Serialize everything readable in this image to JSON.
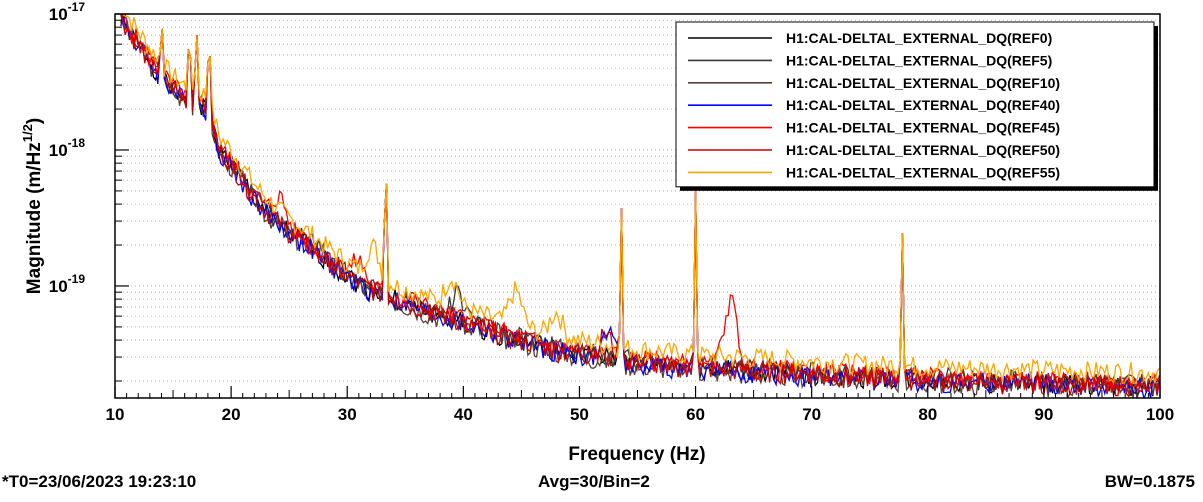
{
  "chart_data": {
    "type": "line",
    "xlabel": "Frequency (Hz)",
    "ylabel": "Magnitude (m/Hz^(1/2))",
    "xlim": [
      10,
      100
    ],
    "ylim": [
      1.5e-20,
      1e-17
    ],
    "yscale": "log",
    "grid": "horizontal dotted",
    "legend_position": "top-right",
    "x_ticks": [
      10,
      20,
      30,
      40,
      50,
      60,
      70,
      80,
      90,
      100
    ],
    "y_ticks": [
      {
        "value": 1e-17,
        "base": "10",
        "exp": "-17"
      },
      {
        "value": 1e-18,
        "base": "10",
        "exp": "-18"
      },
      {
        "value": 1e-19,
        "base": "10",
        "exp": "-19"
      }
    ],
    "baseline_x": [
      10.5,
      11,
      12,
      13,
      14,
      15,
      16,
      17,
      18,
      19,
      20,
      21,
      22,
      23,
      24,
      25,
      26,
      27,
      28,
      29,
      30,
      31,
      32,
      33,
      34,
      35,
      36,
      37,
      38,
      39,
      40,
      41,
      42,
      43,
      44,
      45,
      46,
      47,
      48,
      49,
      50,
      51,
      52,
      53,
      54,
      55,
      56,
      57,
      58,
      59,
      60,
      62,
      64,
      66,
      68,
      70,
      72,
      74,
      76,
      78,
      80,
      82,
      84,
      86,
      88,
      90,
      92,
      94,
      96,
      98,
      100
    ],
    "baseline_y": [
      1e-17,
      8e-18,
      6e-18,
      4.5e-18,
      3.5e-18,
      2.8e-18,
      2.4e-18,
      2.2e-18,
      2e-18,
      1e-18,
      8e-19,
      6e-19,
      4.5e-19,
      3.6e-19,
      3e-19,
      2.5e-19,
      2.2e-19,
      1.9e-19,
      1.6e-19,
      1.4e-19,
      1.2e-19,
      1.05e-19,
      9.5e-20,
      8.8e-20,
      8.2e-20,
      7.6e-20,
      7.1e-20,
      6.6e-20,
      6.2e-20,
      5.8e-20,
      5.5e-20,
      5.1e-20,
      4.8e-20,
      4.5e-20,
      4.2e-20,
      4e-20,
      3.8e-20,
      3.6e-20,
      3.4e-20,
      3.3e-20,
      3.2e-20,
      3.1e-20,
      3e-20,
      2.9e-20,
      2.8e-20,
      2.75e-20,
      2.7e-20,
      2.65e-20,
      2.6e-20,
      2.55e-20,
      2.5e-20,
      2.45e-20,
      2.4e-20,
      2.35e-20,
      2.3e-20,
      2.25e-20,
      2.2e-20,
      2.15e-20,
      2.1e-20,
      2.08e-20,
      2.05e-20,
      2.02e-20,
      2e-20,
      1.98e-20,
      1.96e-20,
      1.94e-20,
      1.92e-20,
      1.9e-20,
      1.88e-20,
      1.86e-20,
      1.85e-20
    ],
    "peaks": [
      {
        "x": 14.0,
        "y": 1e-17
      },
      {
        "x": 14.9,
        "y": 2.4e-18
      },
      {
        "x": 16.4,
        "y": 1e-17
      },
      {
        "x": 17.0,
        "y": 1e-17
      },
      {
        "x": 18.1,
        "y": 1e-17
      },
      {
        "x": 33.3,
        "y": 1.4e-18
      },
      {
        "x": 53.6,
        "y": 4.2e-19
      },
      {
        "x": 60.0,
        "y": 5e-19
      },
      {
        "x": 77.8,
        "y": 2.5e-19
      }
    ],
    "series": [
      {
        "name": "H1:CAL-DELTAL_EXTERNAL_DQ(REF0)",
        "color": "#000000",
        "seed": 1,
        "offset": 1.0,
        "bumps": []
      },
      {
        "name": "H1:CAL-DELTAL_EXTERNAL_DQ(REF5)",
        "color": "#3a3a3a",
        "seed": 2,
        "offset": 1.04,
        "bumps": [
          {
            "x": 39.5,
            "f": 1.5
          }
        ]
      },
      {
        "name": "H1:CAL-DELTAL_EXTERNAL_DQ(REF10)",
        "color": "#5a3f35",
        "seed": 3,
        "offset": 0.96,
        "bumps": [
          {
            "x": 27.5,
            "f": 1.3
          }
        ]
      },
      {
        "name": "H1:CAL-DELTAL_EXTERNAL_DQ(REF40)",
        "color": "#0000ff",
        "seed": 4,
        "offset": 0.97,
        "bumps": [
          {
            "x": 52.5,
            "f": 1.6
          }
        ]
      },
      {
        "name": "H1:CAL-DELTAL_EXTERNAL_DQ(REF45)",
        "color": "#ff0000",
        "seed": 5,
        "offset": 1.05,
        "bumps": [
          {
            "x": 24.2,
            "f": 1.5
          },
          {
            "x": 31.0,
            "f": 1.4
          },
          {
            "x": 63.0,
            "f": 3.0
          }
        ]
      },
      {
        "name": "H1:CAL-DELTAL_EXTERNAL_DQ(REF50)",
        "color": "#cc0000",
        "seed": 6,
        "offset": 1.0,
        "bumps": [
          {
            "x": 52.3,
            "f": 1.5
          }
        ]
      },
      {
        "name": "H1:CAL-DELTAL_EXTERNAL_DQ(REF55)",
        "color": "#ffa500",
        "seed": 7,
        "offset": 1.25,
        "bumps": [
          {
            "x": 32.2,
            "f": 1.7
          },
          {
            "x": 39.0,
            "f": 1.6
          },
          {
            "x": 44.5,
            "f": 1.8
          },
          {
            "x": 48.0,
            "f": 1.5
          }
        ]
      }
    ]
  },
  "footer": {
    "left": "*T0=23/06/2023 19:23:10",
    "center": "Avg=30/Bin=2",
    "right": "BW=0.1875"
  }
}
